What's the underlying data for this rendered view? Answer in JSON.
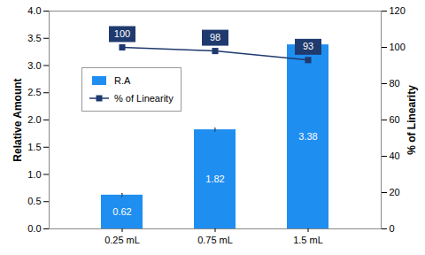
{
  "chart_data": {
    "type": "bar",
    "categories": [
      "0.25 mL",
      "0.75 mL",
      "1.5 mL"
    ],
    "series": [
      {
        "name": "R.A",
        "type": "bar",
        "color": "#1f8ef1",
        "values": [
          0.62,
          1.82,
          3.38
        ],
        "errors": [
          0.03,
          0.03,
          0.05
        ]
      },
      {
        "name": "% of Linearity",
        "type": "line",
        "axis": "y2",
        "marker": "square",
        "color": "#1f3a6e",
        "values": [
          100,
          98,
          93
        ]
      }
    ],
    "y_label": "Relative Amount",
    "y2_label": "% of Linearity",
    "ylim": [
      0,
      4
    ],
    "yticks": [
      {
        "value": 0,
        "label": "0.0"
      },
      {
        "value": 0.5,
        "label": "0.5"
      },
      {
        "value": 1,
        "label": "1.0"
      },
      {
        "value": 1.5,
        "label": "1.5"
      },
      {
        "value": 2,
        "label": "2.0"
      },
      {
        "value": 2.5,
        "label": "2.5"
      },
      {
        "value": 3,
        "label": "3.0"
      },
      {
        "value": 3.5,
        "label": "3.5"
      },
      {
        "value": 4,
        "label": "4.0"
      }
    ],
    "y2lim": [
      0,
      120
    ],
    "y2ticks": [
      0,
      20,
      40,
      60,
      80,
      100,
      120
    ],
    "grid": false,
    "legend": "upper left",
    "data_labels": true
  }
}
